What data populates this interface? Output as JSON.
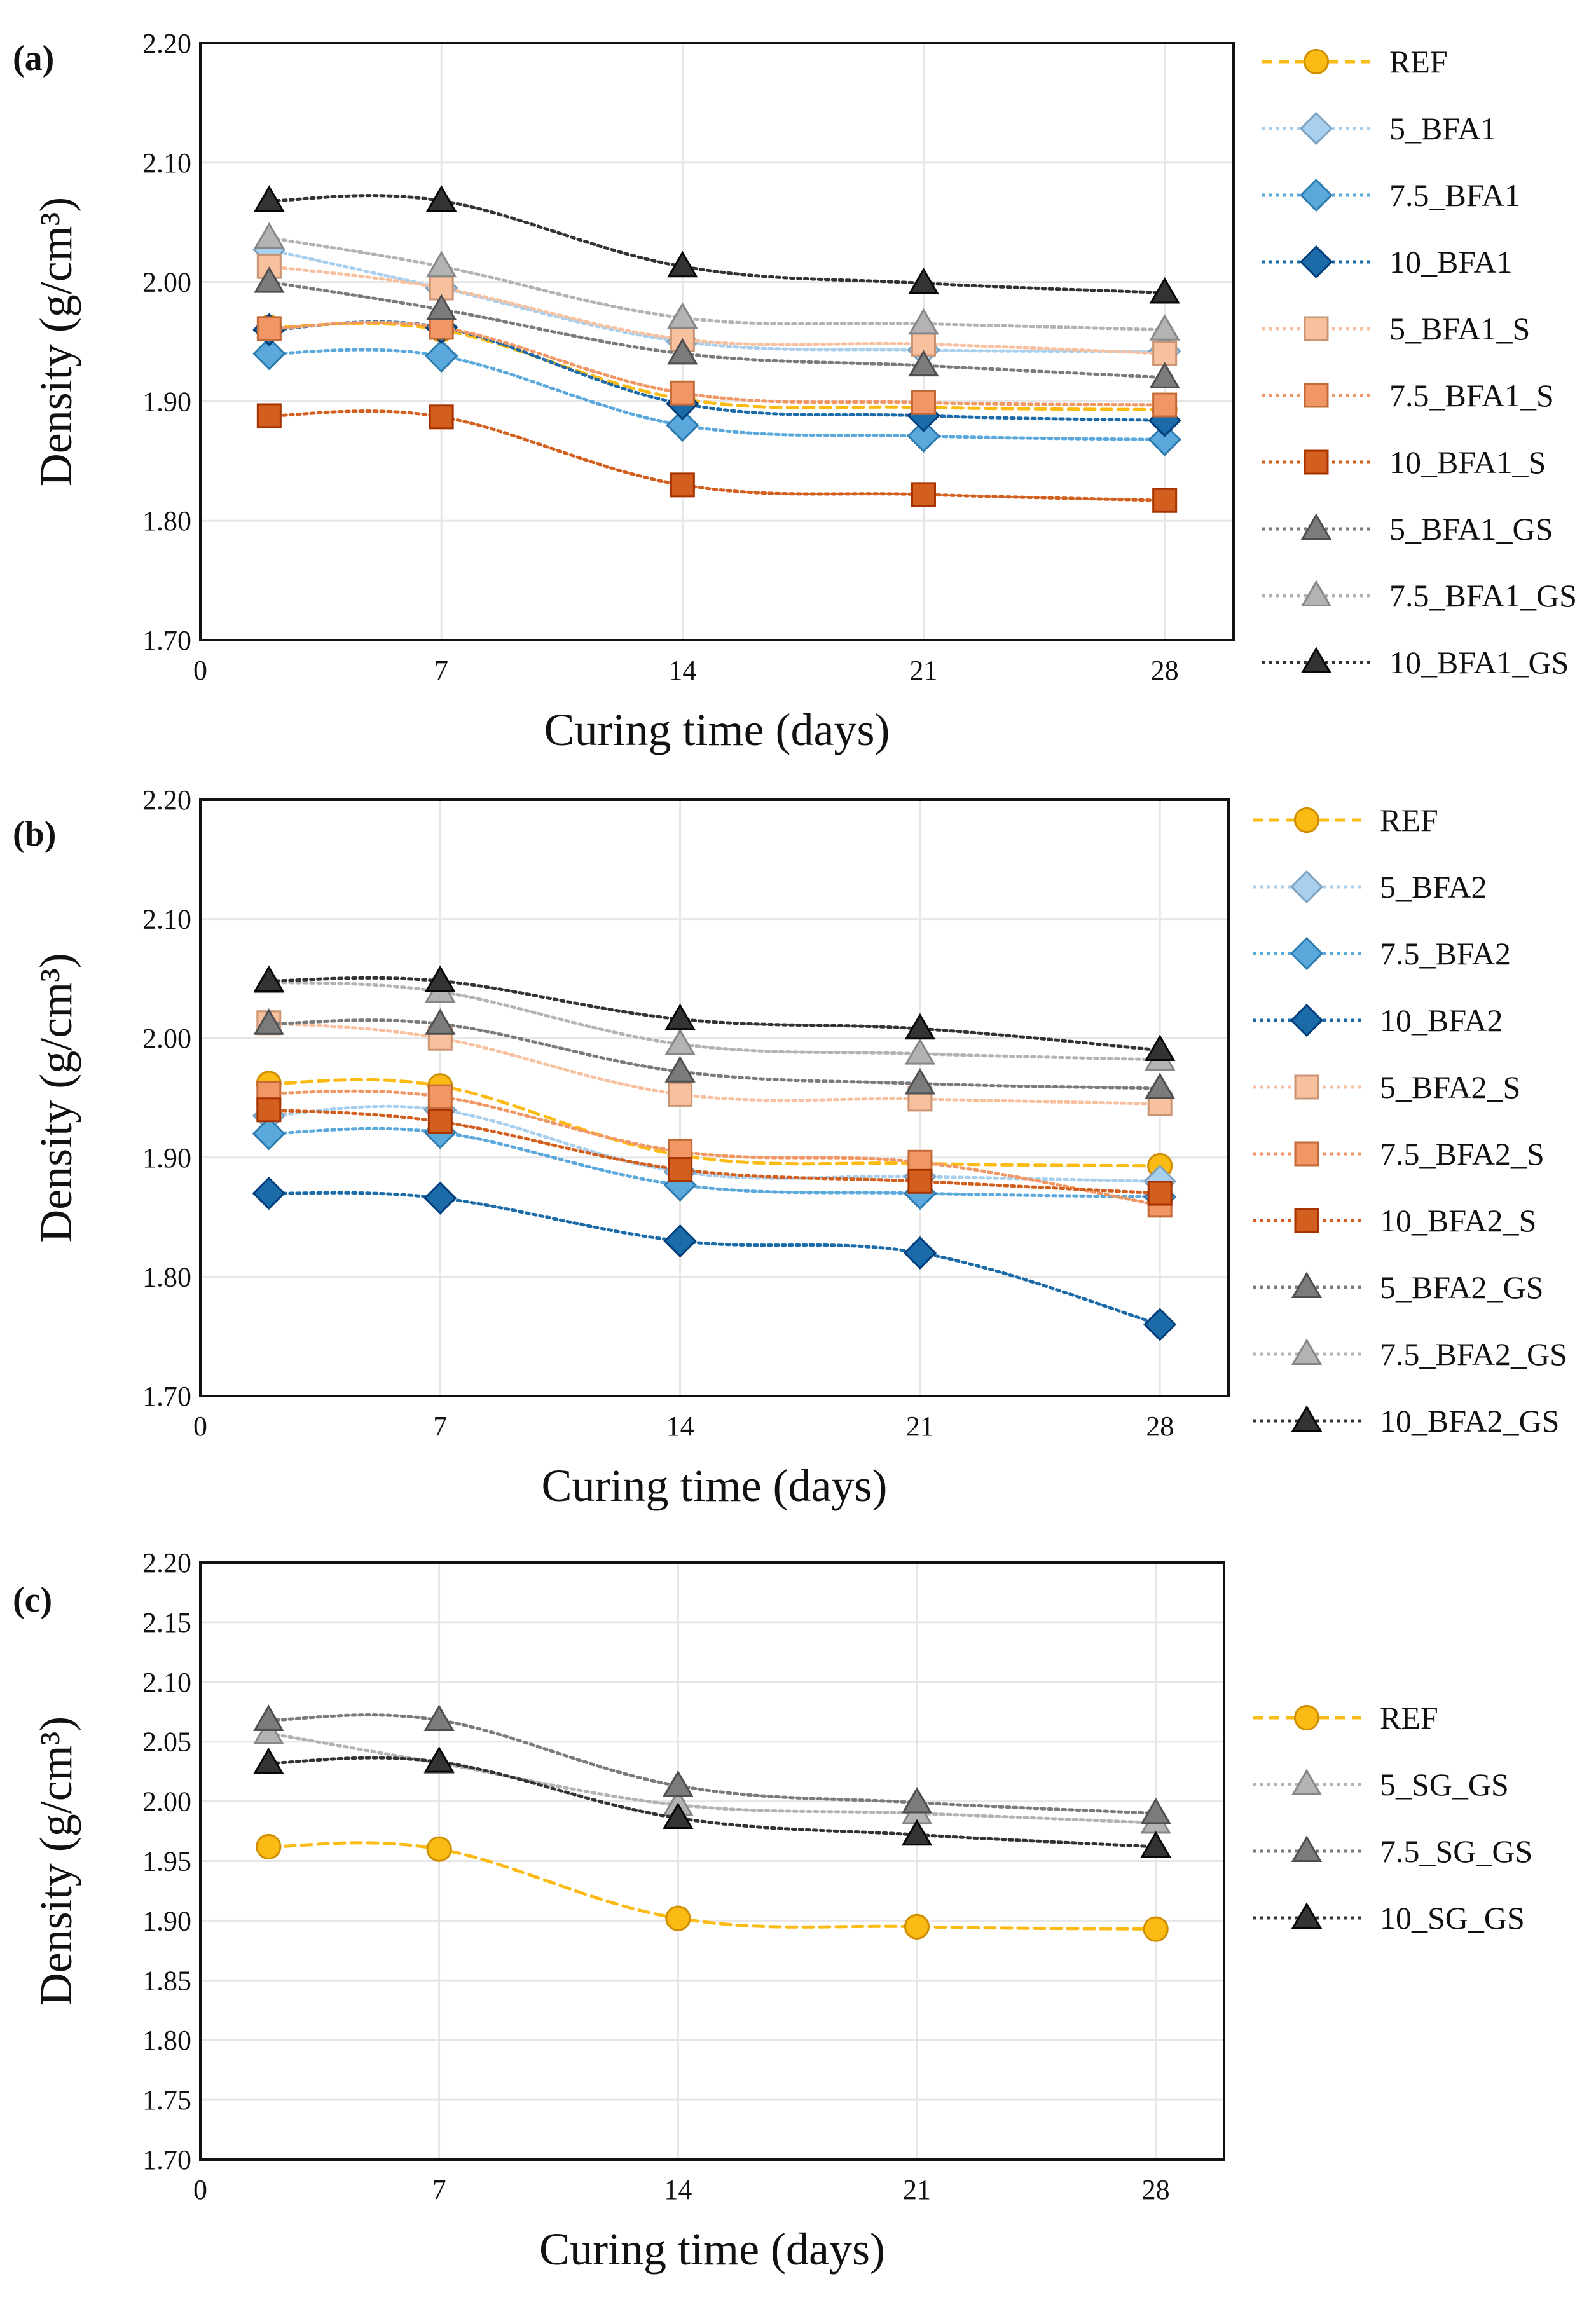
{
  "chart_data": [
    {
      "type": "line",
      "panel_label": "(a)",
      "xlabel": "Curing time (days)",
      "ylabel": "Density (g/cm³)",
      "x_ticks": [
        0,
        7,
        14,
        21,
        28
      ],
      "xlim": [
        0,
        30
      ],
      "ylim": [
        1.7,
        2.2
      ],
      "y_ticks": [
        "1.70",
        "1.80",
        "1.90",
        "2.00",
        "2.10",
        "2.20"
      ],
      "x": [
        2,
        7,
        14,
        21,
        28
      ],
      "series": [
        {
          "name": "REF",
          "color": "#fbbb14",
          "marker": "circle",
          "dash": "dashed",
          "values": [
            1.962,
            1.96,
            1.902,
            1.895,
            1.893
          ]
        },
        {
          "name": "5_BFA1",
          "color": "#a9cfee",
          "marker": "diamond",
          "dash": "dotted",
          "values": [
            2.027,
            1.995,
            1.95,
            1.943,
            1.942
          ]
        },
        {
          "name": "7.5_BFA1",
          "color": "#5aa8dc",
          "marker": "diamond",
          "dash": "dotted",
          "values": [
            1.94,
            1.938,
            1.88,
            1.871,
            1.868
          ]
        },
        {
          "name": "10_BFA1",
          "color": "#1a6ba8",
          "marker": "diamond",
          "dash": "dotted",
          "values": [
            1.96,
            1.962,
            1.898,
            1.888,
            1.884
          ]
        },
        {
          "name": "5_BFA1_S",
          "color": "#f7c1a0",
          "marker": "square",
          "dash": "dotted",
          "values": [
            2.013,
            1.995,
            1.952,
            1.948,
            1.94
          ]
        },
        {
          "name": "7.5_BFA1_S",
          "color": "#f19765",
          "marker": "square",
          "dash": "dotted",
          "values": [
            1.961,
            1.962,
            1.907,
            1.899,
            1.897
          ]
        },
        {
          "name": "10_BFA1_S",
          "color": "#d35f1e",
          "marker": "square",
          "dash": "dotted",
          "values": [
            1.888,
            1.887,
            1.83,
            1.822,
            1.817
          ]
        },
        {
          "name": "5_BFA1_GS",
          "color": "#7b7b7b",
          "marker": "triangle",
          "dash": "dotted",
          "values": [
            2.0,
            1.977,
            1.94,
            1.93,
            1.92
          ]
        },
        {
          "name": "7.5_BFA1_GS",
          "color": "#b3b3b3",
          "marker": "triangle",
          "dash": "dotted",
          "values": [
            2.037,
            2.013,
            1.97,
            1.965,
            1.96
          ]
        },
        {
          "name": "10_BFA1_GS",
          "color": "#333333",
          "marker": "triangle",
          "dash": "dotted",
          "values": [
            2.068,
            2.068,
            2.013,
            1.999,
            1.991
          ]
        }
      ]
    },
    {
      "type": "line",
      "panel_label": "(b)",
      "xlabel": "Curing time (days)",
      "ylabel": "Density (g/cm³)",
      "x_ticks": [
        0,
        7,
        14,
        21,
        28
      ],
      "xlim": [
        0,
        30
      ],
      "ylim": [
        1.7,
        2.2
      ],
      "y_ticks": [
        "1.70",
        "1.80",
        "1.90",
        "2.00",
        "2.10",
        "2.20"
      ],
      "x": [
        2,
        7,
        14,
        21,
        28
      ],
      "series": [
        {
          "name": "REF",
          "color": "#fbbb14",
          "marker": "circle",
          "dash": "dashed",
          "values": [
            1.962,
            1.96,
            1.902,
            1.895,
            1.893
          ]
        },
        {
          "name": "5_BFA2",
          "color": "#a9cfee",
          "marker": "diamond",
          "dash": "dotted",
          "values": [
            1.935,
            1.94,
            1.888,
            1.884,
            1.88
          ]
        },
        {
          "name": "7.5_BFA2",
          "color": "#5aa8dc",
          "marker": "diamond",
          "dash": "dotted",
          "values": [
            1.92,
            1.921,
            1.877,
            1.87,
            1.867
          ]
        },
        {
          "name": "10_BFA2",
          "color": "#1a6ba8",
          "marker": "diamond",
          "dash": "dotted",
          "values": [
            1.87,
            1.866,
            1.83,
            1.82,
            1.76
          ]
        },
        {
          "name": "5_BFA2_S",
          "color": "#f7c1a0",
          "marker": "square",
          "dash": "dotted",
          "values": [
            2.013,
            2.0,
            1.953,
            1.949,
            1.945
          ]
        },
        {
          "name": "7.5_BFA2_S",
          "color": "#f19765",
          "marker": "square",
          "dash": "dotted",
          "values": [
            1.954,
            1.951,
            1.905,
            1.896,
            1.86
          ]
        },
        {
          "name": "10_BFA2_S",
          "color": "#d35f1e",
          "marker": "square",
          "dash": "dotted",
          "values": [
            1.94,
            1.93,
            1.89,
            1.88,
            1.87
          ]
        },
        {
          "name": "5_BFA2_GS",
          "color": "#7b7b7b",
          "marker": "triangle",
          "dash": "dotted",
          "values": [
            2.012,
            2.012,
            1.972,
            1.962,
            1.958
          ]
        },
        {
          "name": "7.5_BFA2_GS",
          "color": "#b3b3b3",
          "marker": "triangle",
          "dash": "dotted",
          "values": [
            2.047,
            2.039,
            1.995,
            1.987,
            1.982
          ]
        },
        {
          "name": "10_BFA2_GS",
          "color": "#333333",
          "marker": "triangle",
          "dash": "dotted",
          "values": [
            2.048,
            2.048,
            2.016,
            2.008,
            1.99
          ]
        }
      ]
    },
    {
      "type": "line",
      "panel_label": "(c)",
      "xlabel": "Curing time (days)",
      "ylabel": "Density (g/cm³)",
      "x_ticks": [
        0,
        7,
        14,
        21,
        28
      ],
      "xlim": [
        0,
        30
      ],
      "ylim": [
        1.7,
        2.2
      ],
      "y_ticks": [
        "1.70",
        "1.75",
        "1.80",
        "1.85",
        "1.90",
        "1.95",
        "2.00",
        "2.05",
        "2.10",
        "2.15",
        "2.20"
      ],
      "x": [
        2,
        7,
        14,
        21,
        28
      ],
      "series": [
        {
          "name": "REF",
          "color": "#fbbb14",
          "marker": "circle",
          "dash": "dashed",
          "values": [
            1.962,
            1.96,
            1.902,
            1.895,
            1.893
          ]
        },
        {
          "name": "5_SG_GS",
          "color": "#b3b3b3",
          "marker": "triangle",
          "dash": "dotted",
          "values": [
            2.057,
            2.032,
            1.997,
            1.99,
            1.982
          ]
        },
        {
          "name": "7.5_SG_GS",
          "color": "#7b7b7b",
          "marker": "triangle",
          "dash": "dotted",
          "values": [
            2.068,
            2.068,
            2.013,
            1.999,
            1.99
          ]
        },
        {
          "name": "10_SG_GS",
          "color": "#333333",
          "marker": "triangle",
          "dash": "dotted",
          "values": [
            2.032,
            2.033,
            1.986,
            1.972,
            1.962
          ]
        }
      ]
    }
  ]
}
